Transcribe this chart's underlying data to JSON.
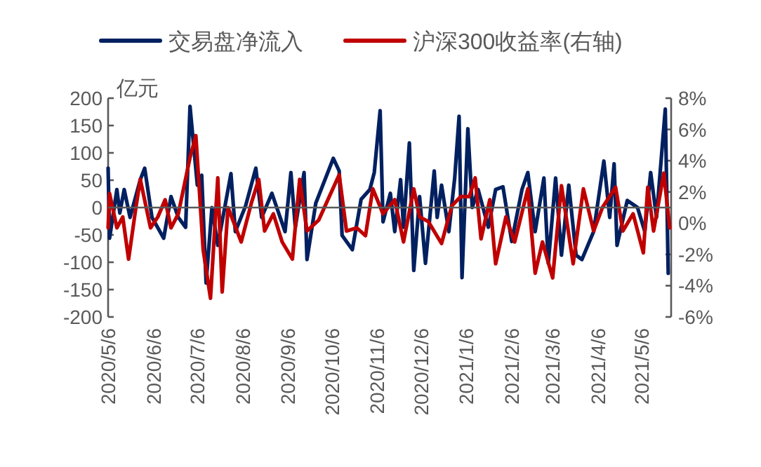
{
  "chart_data": {
    "type": "line",
    "ylabel": "亿元",
    "legend": "top",
    "line_style": "solid",
    "marker": "none",
    "ref_lines": [
      {
        "axis": "y",
        "value": 0,
        "color": "#595959"
      }
    ],
    "xlim": [
      "2020-05-06",
      "2021-05-26"
    ],
    "xticks": [
      {
        "value": "2020-05-06",
        "label": "2020/5/6"
      },
      {
        "value": "2020-06-06",
        "label": "2020/6/6"
      },
      {
        "value": "2020-07-06",
        "label": "2020/7/6"
      },
      {
        "value": "2020-08-06",
        "label": "2020/8/6"
      },
      {
        "value": "2020-09-06",
        "label": "2020/9/6"
      },
      {
        "value": "2020-10-06",
        "label": "2020/10/6"
      },
      {
        "value": "2020-11-06",
        "label": "2020/11/6"
      },
      {
        "value": "2020-12-06",
        "label": "2020/12/6"
      },
      {
        "value": "2021-01-06",
        "label": "2021/1/6"
      },
      {
        "value": "2021-02-06",
        "label": "2021/2/6"
      },
      {
        "value": "2021-03-06",
        "label": "2021/3/6"
      },
      {
        "value": "2021-04-06",
        "label": "2021/4/6"
      },
      {
        "value": "2021-05-06",
        "label": "2021/5/6"
      }
    ],
    "ylim": [
      -200,
      200
    ],
    "yticks": [
      -200,
      -150,
      -100,
      -50,
      0,
      50,
      100,
      150,
      200
    ],
    "y2lim": [
      -6,
      8
    ],
    "y2ticks": [
      {
        "value": -6,
        "label": "-6%"
      },
      {
        "value": -4,
        "label": "-4%"
      },
      {
        "value": -2,
        "label": "-2%"
      },
      {
        "value": 0,
        "label": "0%"
      },
      {
        "value": 2,
        "label": "2%"
      },
      {
        "value": 4,
        "label": "4%"
      },
      {
        "value": 6,
        "label": "6%"
      },
      {
        "value": 8,
        "label": "8%"
      }
    ],
    "series": [
      {
        "name": "交易盘净流入",
        "color": "#002060",
        "x": [
          "2020-05-06",
          "2020-05-07",
          "2020-05-12",
          "2020-05-14",
          "2020-05-17",
          "2020-05-21",
          "2020-05-28",
          "2020-05-31",
          "2020-06-05",
          "2020-06-13",
          "2020-06-18",
          "2020-06-23",
          "2020-06-28",
          "2020-07-01",
          "2020-07-06",
          "2020-07-09",
          "2020-07-12",
          "2020-07-16",
          "2020-07-20",
          "2020-07-29",
          "2020-08-01",
          "2020-08-08",
          "2020-08-15",
          "2020-08-19",
          "2020-08-26",
          "2020-09-04",
          "2020-09-08",
          "2020-09-11",
          "2020-09-17",
          "2020-09-19",
          "2020-09-25",
          "2020-10-07",
          "2020-10-11",
          "2020-10-13",
          "2020-10-20",
          "2020-10-26",
          "2020-11-01",
          "2020-11-04",
          "2020-11-08",
          "2020-11-10",
          "2020-11-15",
          "2020-11-18",
          "2020-11-22",
          "2020-11-24",
          "2020-11-28",
          "2020-12-01",
          "2020-12-05",
          "2020-12-09",
          "2020-12-15",
          "2020-12-17",
          "2020-12-20",
          "2020-12-25",
          "2020-12-29",
          "2021-01-01",
          "2021-01-03",
          "2021-01-07",
          "2021-01-10",
          "2021-01-14",
          "2021-01-21",
          "2021-01-26",
          "2021-01-31",
          "2021-02-06",
          "2021-02-13",
          "2021-02-17",
          "2021-02-22",
          "2021-02-28",
          "2021-03-03",
          "2021-03-08",
          "2021-03-12",
          "2021-03-17",
          "2021-03-22",
          "2021-03-26",
          "2021-04-03",
          "2021-04-10",
          "2021-04-14",
          "2021-04-17",
          "2021-04-19",
          "2021-04-26",
          "2021-05-03",
          "2021-05-08",
          "2021-05-12",
          "2021-05-16",
          "2021-05-22",
          "2021-05-24"
        ],
        "values": [
          72,
          -56,
          33,
          -10,
          33,
          -18,
          51,
          72,
          -18,
          -56,
          20,
          -18,
          -36,
          185,
          41,
          59,
          -138,
          0,
          -69,
          62,
          -44,
          3,
          72,
          -18,
          26,
          -44,
          64,
          -36,
          64,
          -95,
          8,
          90,
          67,
          -51,
          -77,
          15,
          33,
          64,
          177,
          -26,
          26,
          -44,
          51,
          -36,
          118,
          -115,
          20,
          -102,
          67,
          -18,
          41,
          -44,
          54,
          167,
          -128,
          144,
          0,
          33,
          -36,
          33,
          38,
          -62,
          33,
          64,
          -44,
          54,
          -102,
          54,
          -87,
          41,
          -87,
          -95,
          -44,
          85,
          -18,
          80,
          -69,
          13,
          0,
          -44,
          64,
          -18,
          180,
          -120
        ]
      },
      {
        "name": "沪深300收益率(右轴)",
        "color": "#c00000",
        "axis": "y2",
        "x": [
          "2020-05-06",
          "2020-05-07",
          "2020-05-12",
          "2020-05-16",
          "2020-05-20",
          "2020-05-25",
          "2020-05-28",
          "2020-06-04",
          "2020-06-09",
          "2020-06-14",
          "2020-06-18",
          "2020-06-23",
          "2020-07-01",
          "2020-07-05",
          "2020-07-10",
          "2020-07-15",
          "2020-07-20",
          "2020-07-23",
          "2020-07-27",
          "2020-08-05",
          "2020-08-12",
          "2020-08-17",
          "2020-08-21",
          "2020-08-27",
          "2020-09-02",
          "2020-09-09",
          "2020-09-14",
          "2020-09-19",
          "2020-09-27",
          "2020-10-11",
          "2020-10-16",
          "2020-10-23",
          "2020-10-29",
          "2020-11-03",
          "2020-11-10",
          "2020-11-18",
          "2020-11-24",
          "2020-12-01",
          "2020-12-05",
          "2020-12-11",
          "2020-12-20",
          "2020-12-27",
          "2021-01-02",
          "2021-01-08",
          "2021-01-12",
          "2021-01-16",
          "2021-01-22",
          "2021-01-26",
          "2021-02-02",
          "2021-02-08",
          "2021-02-17",
          "2021-02-22",
          "2021-02-27",
          "2021-03-06",
          "2021-03-12",
          "2021-03-20",
          "2021-03-27",
          "2021-04-03",
          "2021-04-09",
          "2021-04-18",
          "2021-04-23",
          "2021-04-30",
          "2021-05-07",
          "2021-05-10",
          "2021-05-14",
          "2021-05-21",
          "2021-05-25"
        ],
        "values": [
          -0.3,
          1.9,
          -0.3,
          0.4,
          -2.3,
          1.0,
          2.8,
          -0.3,
          0.4,
          1.5,
          -0.3,
          0.6,
          4.2,
          5.6,
          -1.7,
          -4.8,
          2.9,
          -4.4,
          1.0,
          -1.2,
          1.3,
          2.8,
          -0.5,
          0.6,
          -1.2,
          -2.3,
          2.8,
          -0.5,
          0.2,
          3.1,
          -0.5,
          -0.3,
          -0.8,
          2.2,
          0.6,
          1.5,
          -1.2,
          2.2,
          0.4,
          0.1,
          -1.3,
          1.1,
          1.7,
          1.7,
          2.9,
          -1.0,
          1.5,
          -2.6,
          0.4,
          -1.2,
          2.2,
          -3.2,
          -1.2,
          -3.5,
          2.4,
          -2.6,
          2.2,
          -0.5,
          1.0,
          2.3,
          -0.5,
          0.6,
          -1.9,
          2.3,
          -0.5,
          3.2,
          -0.3
        ]
      }
    ]
  }
}
